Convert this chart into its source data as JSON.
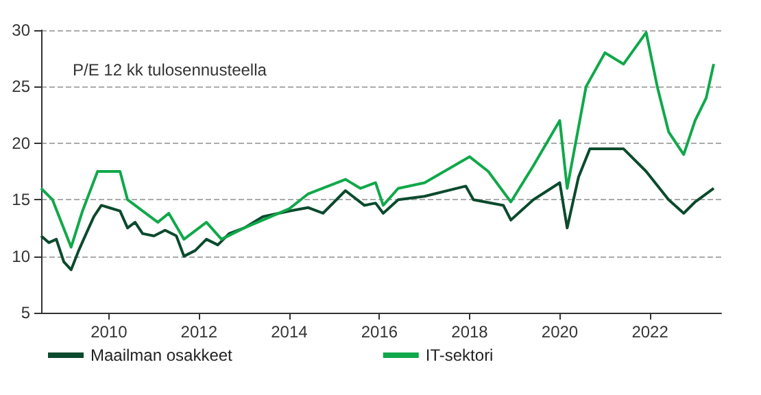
{
  "chart_data": {
    "type": "line",
    "title": "P/E 12 kk tulosennusteella",
    "xlim": [
      "2008-07",
      "2023-08"
    ],
    "xticks": [
      "2010",
      "2012",
      "2014",
      "2016",
      "2018",
      "2020",
      "2022"
    ],
    "ylim": [
      5,
      30
    ],
    "yticks": [
      5,
      10,
      15,
      20,
      25,
      30
    ],
    "grid": "y",
    "legend": "bottom",
    "marker": "none",
    "line_style": "solid",
    "series": [
      {
        "name": "Maailman osakkeet",
        "color": "#0b4a2e",
        "x": [
          "2008-07",
          "2008-09",
          "2008-11",
          "2009-01",
          "2009-03",
          "2009-05",
          "2009-07",
          "2009-09",
          "2009-11",
          "2010-01",
          "2010-04",
          "2010-06",
          "2010-08",
          "2010-10",
          "2011-01",
          "2011-04",
          "2011-07",
          "2011-09",
          "2011-12",
          "2012-03",
          "2012-06",
          "2012-09",
          "2013-01",
          "2013-06",
          "2014-01",
          "2014-06",
          "2014-10",
          "2015-04",
          "2015-09",
          "2015-12",
          "2016-02",
          "2016-06",
          "2017-01",
          "2017-12",
          "2018-02",
          "2018-10",
          "2018-12",
          "2019-06",
          "2020-01",
          "2020-03",
          "2020-06",
          "2020-09",
          "2021-01",
          "2021-06",
          "2021-12",
          "2022-06",
          "2022-10",
          "2023-01",
          "2023-06"
        ],
        "values": [
          11.8,
          11.2,
          11.5,
          9.5,
          8.8,
          10.5,
          12,
          13.5,
          14.5,
          14.3,
          14,
          12.5,
          13,
          12,
          11.8,
          12.3,
          11.8,
          10,
          10.5,
          11.5,
          11,
          12,
          12.5,
          13.5,
          14,
          14.3,
          13.8,
          15.8,
          14.5,
          14.7,
          13.8,
          15,
          15.3,
          16.2,
          15,
          14.5,
          13.2,
          15,
          16.5,
          12.5,
          17,
          19.5,
          19.5,
          19.5,
          17.5,
          15,
          13.8,
          14.8,
          16
        ]
      },
      {
        "name": "IT-sektori",
        "color": "#10a84a",
        "x": [
          "2008-07",
          "2008-10",
          "2009-03",
          "2009-06",
          "2009-10",
          "2010-04",
          "2010-06",
          "2010-10",
          "2011-02",
          "2011-05",
          "2011-09",
          "2012-03",
          "2012-07",
          "2013-01",
          "2013-06",
          "2014-01",
          "2014-06",
          "2015-04",
          "2015-08",
          "2015-12",
          "2016-02",
          "2016-06",
          "2017-01",
          "2018-01",
          "2018-06",
          "2018-12",
          "2019-06",
          "2020-01",
          "2020-03",
          "2020-08",
          "2021-01",
          "2021-06",
          "2021-12",
          "2022-03",
          "2022-06",
          "2022-10",
          "2023-01",
          "2023-04",
          "2023-06"
        ],
        "values": [
          16,
          15,
          10.8,
          14,
          17.5,
          17.5,
          15,
          14,
          13,
          13.8,
          11.5,
          13,
          11.5,
          12.5,
          13.2,
          14.2,
          15.5,
          16.8,
          16,
          16.5,
          14.5,
          16,
          16.5,
          18.8,
          17.5,
          14.8,
          18,
          22,
          16,
          25,
          28,
          27,
          29.8,
          25,
          21,
          19,
          22,
          24,
          27
        ]
      }
    ]
  }
}
